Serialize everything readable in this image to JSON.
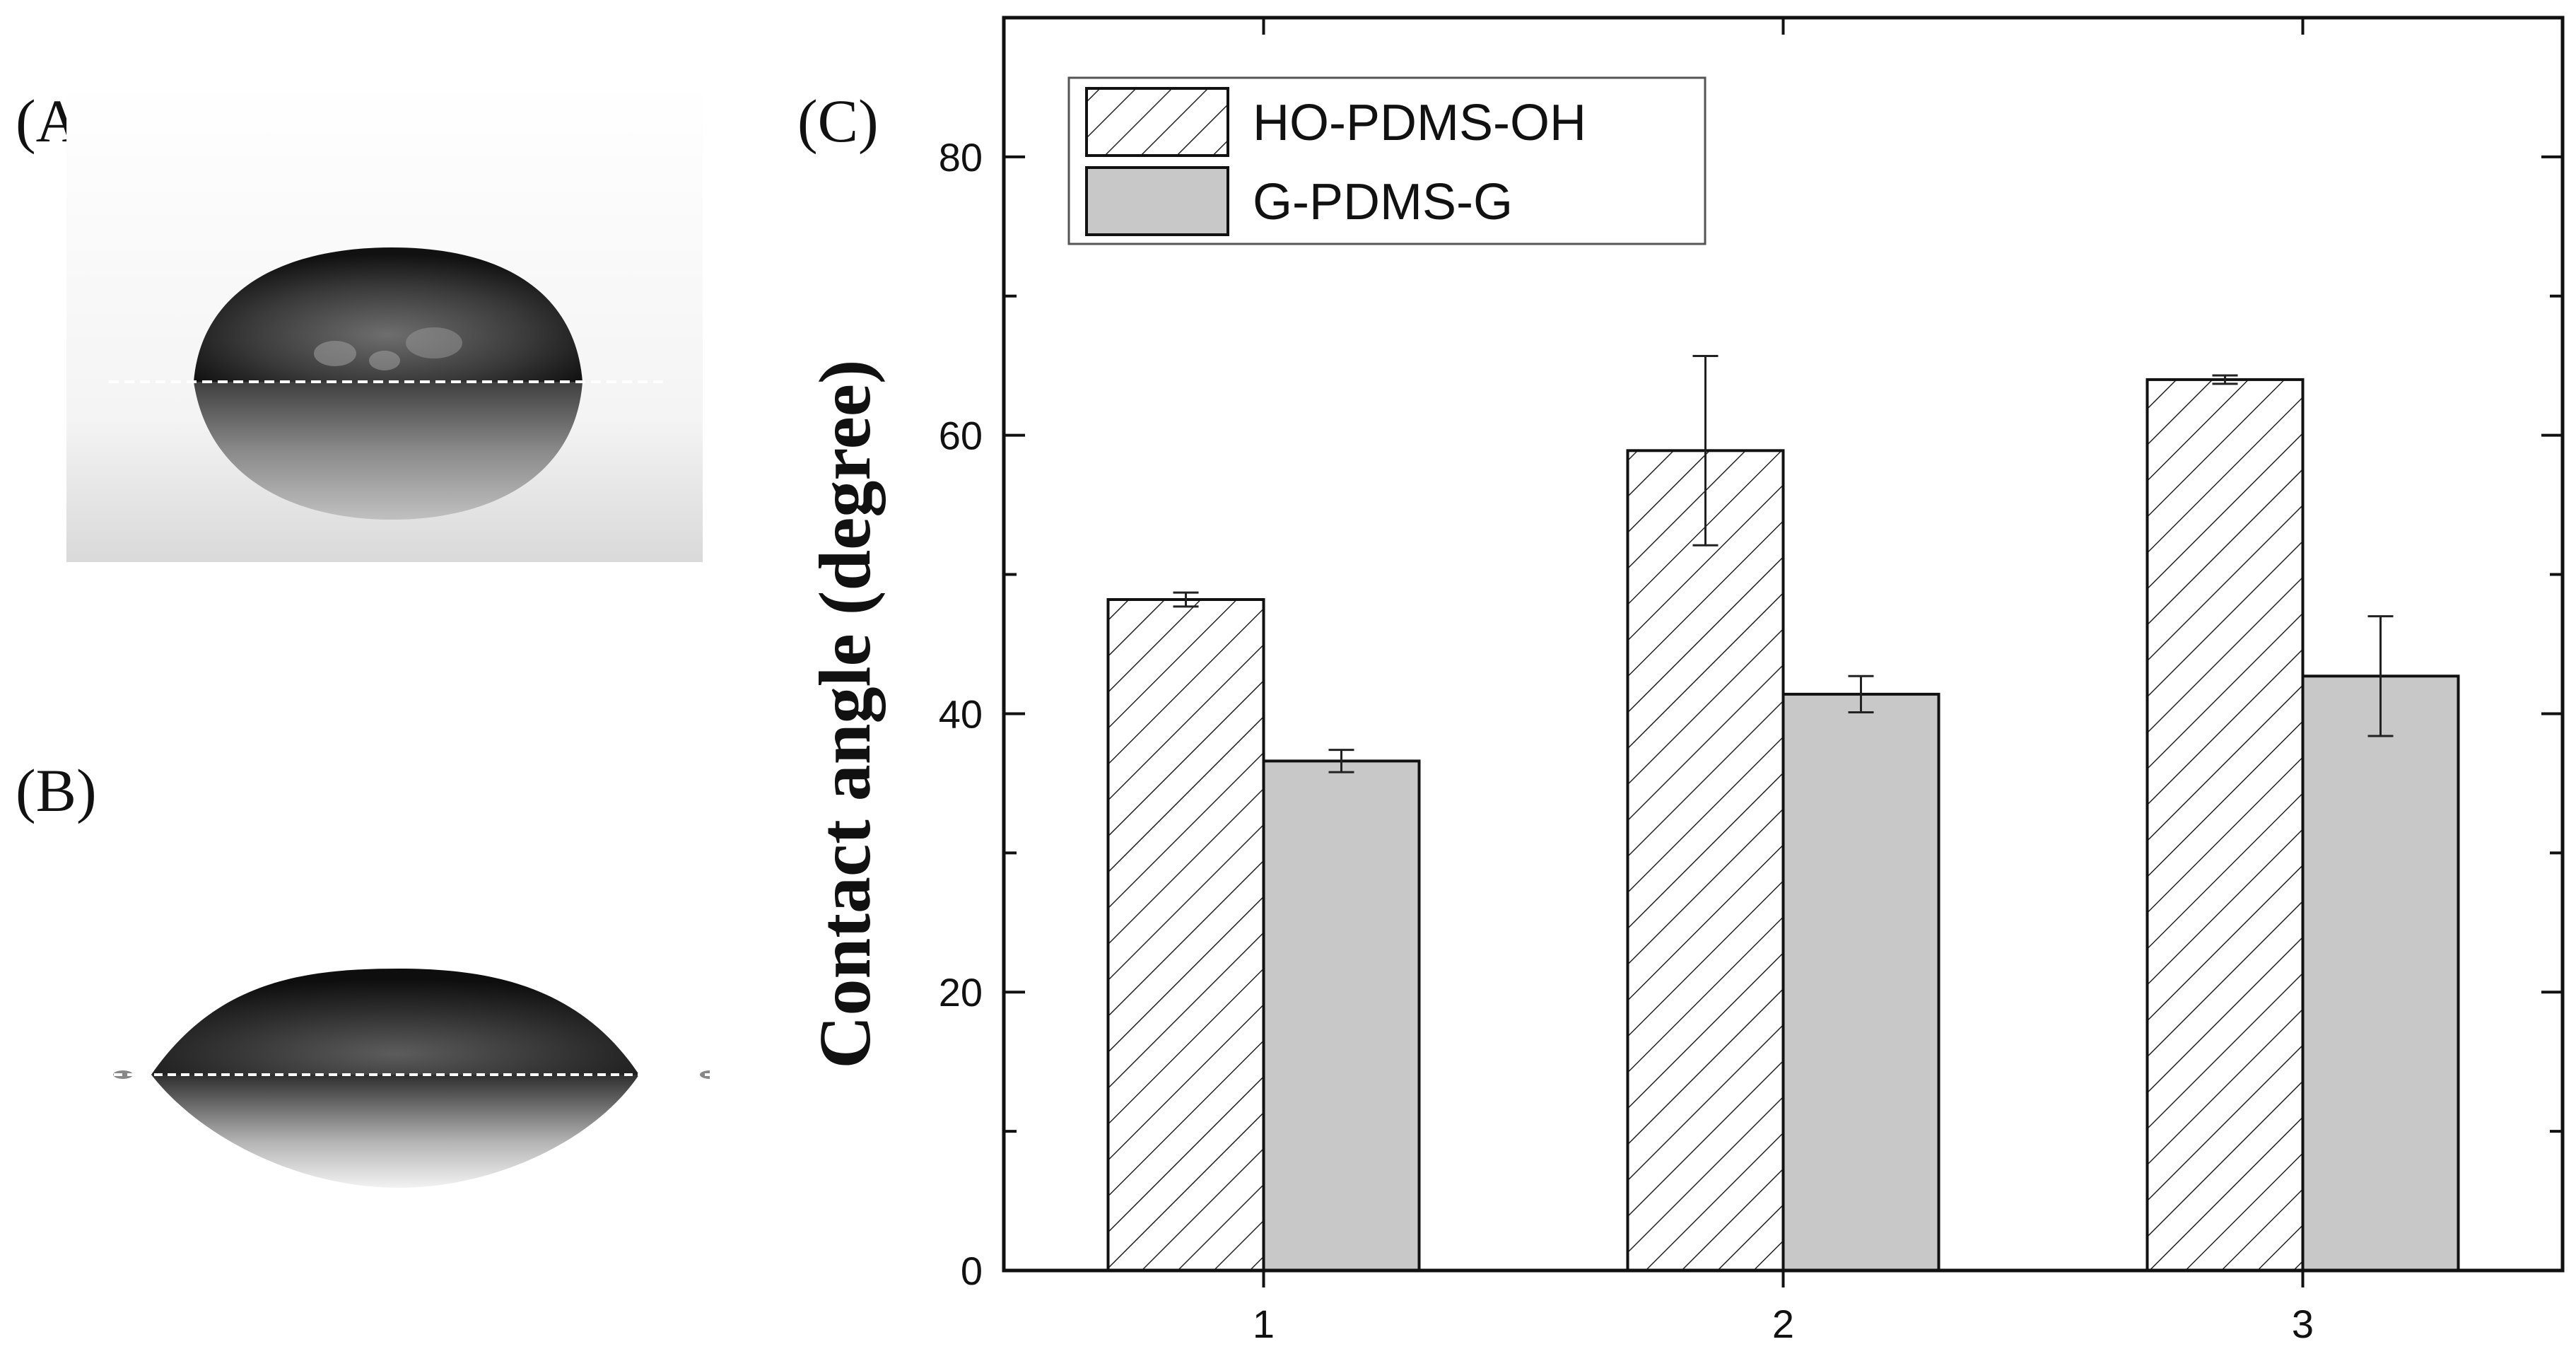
{
  "panels": {
    "a": "(A)",
    "b": "(B)",
    "c": "(C)"
  },
  "images": {
    "a": "droplet-photo-A",
    "b": "droplet-photo-B"
  },
  "colors": {
    "hatch_fill": "#ffffff",
    "solid_fill": "#c8c8c8",
    "axis": "#111111"
  },
  "chart_data": {
    "type": "bar",
    "categories": [
      "1",
      "2",
      "3"
    ],
    "series": [
      {
        "name": "HO-PDMS-OH",
        "pattern": "hatched",
        "values": [
          48.2,
          58.9,
          64.0
        ],
        "errors": [
          0.5,
          6.8,
          0.3
        ]
      },
      {
        "name": "G-PDMS-G",
        "pattern": "solid-gray",
        "values": [
          36.6,
          41.4,
          42.7
        ],
        "errors": [
          0.8,
          1.3,
          4.3
        ]
      }
    ],
    "ylabel": "Contact angle (degree)",
    "xlabel": "",
    "ylim": [
      0,
      90
    ],
    "yticks": [
      0,
      20,
      40,
      60,
      80
    ],
    "legend_position": "top-left"
  }
}
